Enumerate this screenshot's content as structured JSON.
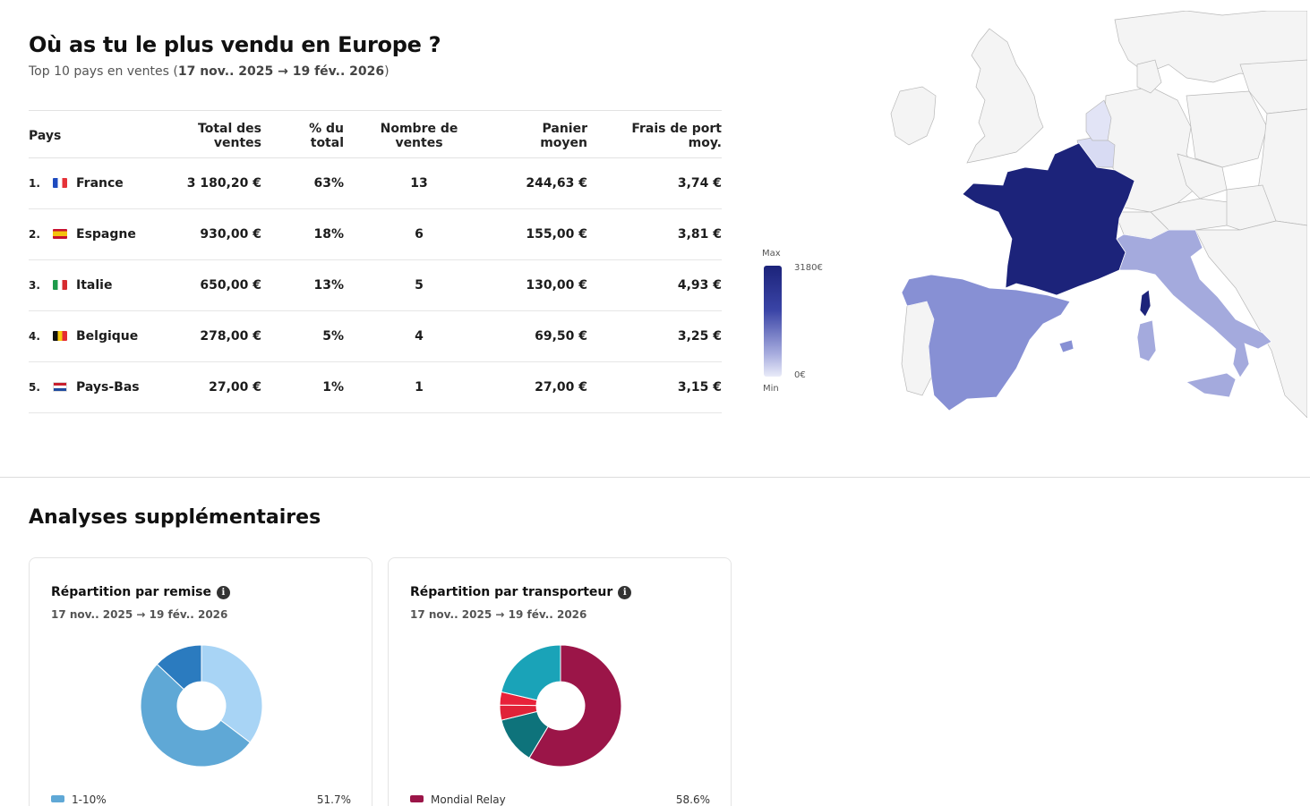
{
  "header": {
    "title": "Où as tu le plus vendu en Europe ?",
    "subtitle_prefix": "Top 10 pays en ventes (",
    "subtitle_range": "17 nov.. 2025 → 19 fév.. 2026",
    "subtitle_suffix": ")"
  },
  "table": {
    "columns": {
      "country": "Pays",
      "total": "Total des ventes",
      "share": "% du total",
      "count": "Nombre de ventes",
      "basket": "Panier moyen",
      "shipping": "Frais de port moy."
    },
    "rows": [
      {
        "rank": "1.",
        "flag": "flag-fr",
        "country": "France",
        "total": "3 180,20 €",
        "share": "63%",
        "count": "13",
        "basket": "244,63 €",
        "shipping": "3,74 €"
      },
      {
        "rank": "2.",
        "flag": "flag-es",
        "country": "Espagne",
        "total": "930,00 €",
        "share": "18%",
        "count": "6",
        "basket": "155,00 €",
        "shipping": "3,81 €"
      },
      {
        "rank": "3.",
        "flag": "flag-it",
        "country": "Italie",
        "total": "650,00 €",
        "share": "13%",
        "count": "5",
        "basket": "130,00 €",
        "shipping": "4,93 €"
      },
      {
        "rank": "4.",
        "flag": "flag-be",
        "country": "Belgique",
        "total": "278,00 €",
        "share": "5%",
        "count": "4",
        "basket": "69,50 €",
        "shipping": "3,25 €"
      },
      {
        "rank": "5.",
        "flag": "flag-nl",
        "country": "Pays-Bas",
        "total": "27,00 €",
        "share": "1%",
        "count": "1",
        "basket": "27,00 €",
        "shipping": "3,15 €"
      }
    ]
  },
  "legend": {
    "max_label": "Max",
    "min_label": "Min",
    "max_value": "3180€",
    "min_value": "0€"
  },
  "map": {
    "colors": {
      "France": "#1c237a",
      "Espagne": "#8790d4",
      "Italie": "#a4aadd",
      "Belgique": "#d8dbf3",
      "Pays-Bas": "#e2e4f6",
      "other": "#f4f4f4",
      "border": "#b8b8b8"
    }
  },
  "section2": {
    "title": "Analyses supplémentaires"
  },
  "cards": [
    {
      "title": "Répartition par remise",
      "info_icon": "info-icon",
      "date": "17 nov.. 2025 → 19 fév.. 2026",
      "slices": [
        {
          "label": "1-10%",
          "value": 51.7,
          "color": "#5fa8d6"
        },
        {
          "label": "",
          "value": 13.0,
          "color": "#2b7bbf"
        },
        {
          "label": "",
          "value": 35.3,
          "color": "#a8d4f5"
        }
      ],
      "legend_label": "1-10%",
      "legend_pct": "51.7%",
      "legend_color": "#5fa8d6"
    },
    {
      "title": "Répartition par transporteur",
      "info_icon": "info-icon",
      "date": "17 nov.. 2025 → 19 fév.. 2026",
      "slices": [
        {
          "label": "Mondial Relay",
          "value": 58.6,
          "color": "#9b1548"
        },
        {
          "label": "",
          "value": 12.6,
          "color": "#0e737b"
        },
        {
          "label": "",
          "value": 4.0,
          "color": "#e02238"
        },
        {
          "label": "",
          "value": 3.5,
          "color": "#e8223a"
        },
        {
          "label": "",
          "value": 21.3,
          "color": "#1aa3b8"
        }
      ],
      "legend_label": "Mondial Relay",
      "legend_pct": "58.6%",
      "legend_color": "#9b1548"
    }
  ]
}
